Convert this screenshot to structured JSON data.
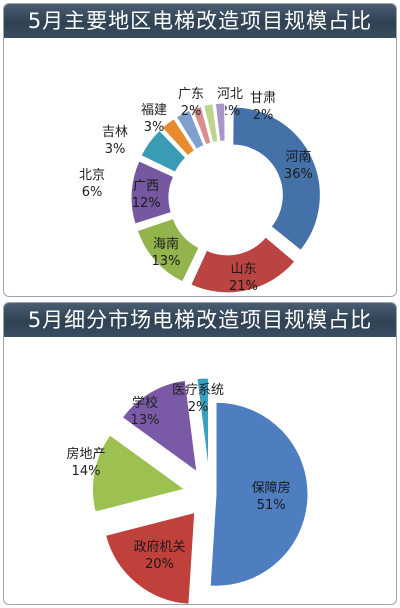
{
  "chart_data": [
    {
      "type": "pie",
      "style": "donut",
      "title": "5月主要地区电梯改造项目规模占比",
      "slices": [
        {
          "name": "河南",
          "pct": "36%",
          "value": 36,
          "color": "#4472a8"
        },
        {
          "name": "山东",
          "pct": "21%",
          "value": 21,
          "color": "#b94441"
        },
        {
          "name": "海南",
          "pct": "13%",
          "value": 13,
          "color": "#93b44d"
        },
        {
          "name": "广西",
          "pct": "12%",
          "value": 12,
          "color": "#7558a0"
        },
        {
          "name": "北京",
          "pct": "6%",
          "value": 6,
          "color": "#3a9bb5"
        },
        {
          "name": "吉林",
          "pct": "3%",
          "value": 3,
          "color": "#e88a2e"
        },
        {
          "name": "福建",
          "pct": "3%",
          "value": 3,
          "color": "#7f9fcf"
        },
        {
          "name": "广东",
          "pct": "2%",
          "value": 2,
          "color": "#d98f90"
        },
        {
          "name": "河北",
          "pct": "2%",
          "value": 2,
          "color": "#bdd48e"
        },
        {
          "name": "甘肃",
          "pct": "2%",
          "value": 2,
          "color": "#a897c6"
        }
      ]
    },
    {
      "type": "pie",
      "style": "exploded",
      "title": "5月细分市场电梯改造项目规模占比",
      "slices": [
        {
          "name": "保障房",
          "pct": "51%",
          "value": 51,
          "color": "#4f7ec0"
        },
        {
          "name": "政府机关",
          "pct": "20%",
          "value": 20,
          "color": "#c0403c"
        },
        {
          "name": "房地产",
          "pct": "14%",
          "value": 14,
          "color": "#9dc150"
        },
        {
          "name": "学校",
          "pct": "13%",
          "value": 13,
          "color": "#7a5aa6"
        },
        {
          "name": "医疗系统",
          "pct": "2%",
          "value": 2,
          "color": "#3aa0c0"
        }
      ]
    }
  ]
}
